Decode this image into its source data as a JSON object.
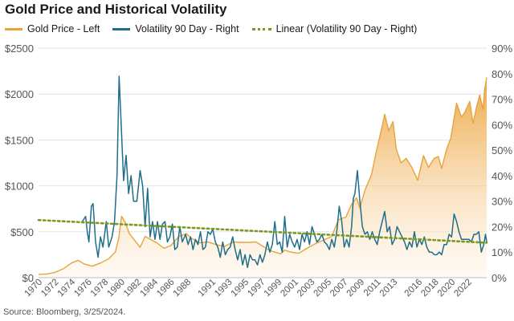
{
  "header": {
    "title": "Gold Price and Historical Volatility"
  },
  "legend": {
    "gold_label": "Gold Price - Left",
    "vol_label": "Volatility 90 Day - Right",
    "linear_label": "Linear (Volatility 90 Day - Right)"
  },
  "footer": {
    "source": "Source: Bloomberg, 3/25/2024."
  },
  "colors": {
    "gold": "#e8a33b",
    "gold_fill_top": "#eea746",
    "volatility": "#1f6e8c",
    "trend": "#7a9a1f",
    "grid": "#e3e3e3",
    "axis_text": "#555555"
  },
  "chart_data": {
    "type": "line",
    "title": "Gold Price and Historical Volatility",
    "x_range": [
      1970,
      2024.25
    ],
    "left_axis": {
      "min": 0,
      "max": 2500,
      "ticks": [
        0,
        500,
        1000,
        1500,
        2000,
        2500
      ],
      "tick_labels": [
        "$0",
        "$500",
        "$1000",
        "$1500",
        "$2000",
        "$2500"
      ]
    },
    "right_axis": {
      "min": 0,
      "max": 90,
      "ticks": [
        0,
        10,
        20,
        30,
        40,
        50,
        60,
        70,
        80,
        90
      ],
      "tick_labels": [
        "0%",
        "10%",
        "20%",
        "30%",
        "40%",
        "50%",
        "60%",
        "70%",
        "80%",
        "90%"
      ]
    },
    "x_ticks": [
      1970,
      1972,
      1974,
      1976,
      1978,
      1980,
      1982,
      1984,
      1986,
      1988,
      1991,
      1993,
      1995,
      1997,
      1999,
      2001,
      2003,
      2005,
      2007,
      2009,
      2011,
      2013,
      2016,
      2018,
      2020,
      2022
    ],
    "x_tick_labels": [
      "1970",
      "1972",
      "1974",
      "1976",
      "1978",
      "1980",
      "1982",
      "1984",
      "1986",
      "1988",
      "1991",
      "1993",
      "1995",
      "1997",
      "1999",
      "2001",
      "2003",
      "2005",
      "2007",
      "2009",
      "2011",
      "2013",
      "2016",
      "2018",
      "2020",
      "2022"
    ],
    "grid": true,
    "series": [
      {
        "name": "Gold Price - Left",
        "axis": "left",
        "style": "area",
        "points": [
          [
            1970,
            36
          ],
          [
            1971,
            40
          ],
          [
            1972,
            58
          ],
          [
            1973,
            97
          ],
          [
            1974,
            160
          ],
          [
            1974.8,
            190
          ],
          [
            1975.5,
            150
          ],
          [
            1976.5,
            125
          ],
          [
            1977.5,
            160
          ],
          [
            1978.5,
            205
          ],
          [
            1979.3,
            280
          ],
          [
            1979.7,
            430
          ],
          [
            1980.05,
            670
          ],
          [
            1980.5,
            600
          ],
          [
            1981,
            480
          ],
          [
            1981.6,
            410
          ],
          [
            1982.3,
            330
          ],
          [
            1982.9,
            450
          ],
          [
            1983.5,
            420
          ],
          [
            1984.3,
            380
          ],
          [
            1985.2,
            320
          ],
          [
            1986,
            350
          ],
          [
            1987,
            450
          ],
          [
            1987.9,
            480
          ],
          [
            1988.5,
            430
          ],
          [
            1989.5,
            380
          ],
          [
            1990.5,
            390
          ],
          [
            1991.5,
            360
          ],
          [
            1992.5,
            340
          ],
          [
            1993.6,
            390
          ],
          [
            1994.5,
            385
          ],
          [
            1995.5,
            385
          ],
          [
            1996.3,
            390
          ],
          [
            1997.2,
            340
          ],
          [
            1998,
            295
          ],
          [
            1999.3,
            260
          ],
          [
            1999.8,
            300
          ],
          [
            2000.5,
            280
          ],
          [
            2001.5,
            265
          ],
          [
            2002.5,
            320
          ],
          [
            2003.5,
            370
          ],
          [
            2004.5,
            410
          ],
          [
            2005.5,
            450
          ],
          [
            2006.3,
            630
          ],
          [
            2007.2,
            660
          ],
          [
            2007.9,
            800
          ],
          [
            2008.5,
            870
          ],
          [
            2008.9,
            760
          ],
          [
            2009.5,
            950
          ],
          [
            2010.3,
            1120
          ],
          [
            2010.9,
            1380
          ],
          [
            2011.6,
            1650
          ],
          [
            2011.9,
            1780
          ],
          [
            2012.4,
            1600
          ],
          [
            2012.9,
            1700
          ],
          [
            2013.3,
            1400
          ],
          [
            2013.9,
            1250
          ],
          [
            2014.5,
            1300
          ],
          [
            2015.2,
            1200
          ],
          [
            2015.9,
            1060
          ],
          [
            2016.6,
            1330
          ],
          [
            2017.2,
            1200
          ],
          [
            2017.9,
            1300
          ],
          [
            2018.4,
            1320
          ],
          [
            2018.8,
            1190
          ],
          [
            2019.4,
            1400
          ],
          [
            2019.9,
            1520
          ],
          [
            2020.6,
            1900
          ],
          [
            2021.2,
            1750
          ],
          [
            2021.6,
            1800
          ],
          [
            2022.2,
            1920
          ],
          [
            2022.6,
            1680
          ],
          [
            2023,
            1850
          ],
          [
            2023.4,
            1990
          ],
          [
            2023.8,
            1830
          ],
          [
            2024.0,
            2050
          ],
          [
            2024.25,
            2180
          ]
        ]
      },
      {
        "name": "Volatility 90 Day - Right",
        "axis": "right",
        "style": "line",
        "points": [
          [
            1975.3,
            22
          ],
          [
            1975.7,
            24
          ],
          [
            1975.9,
            18
          ],
          [
            1976.1,
            14
          ],
          [
            1976.4,
            28
          ],
          [
            1976.6,
            29
          ],
          [
            1976.9,
            14
          ],
          [
            1977.2,
            8
          ],
          [
            1977.5,
            16
          ],
          [
            1977.8,
            12
          ],
          [
            1978.2,
            22
          ],
          [
            1978.5,
            12
          ],
          [
            1978.9,
            16
          ],
          [
            1979.2,
            22
          ],
          [
            1979.5,
            40
          ],
          [
            1979.75,
            79
          ],
          [
            1980.0,
            60
          ],
          [
            1980.3,
            38
          ],
          [
            1980.6,
            48
          ],
          [
            1980.9,
            33
          ],
          [
            1981.2,
            40
          ],
          [
            1981.5,
            30
          ],
          [
            1981.9,
            30
          ],
          [
            1982.3,
            42
          ],
          [
            1982.6,
            36
          ],
          [
            1982.9,
            20
          ],
          [
            1983.2,
            35
          ],
          [
            1983.5,
            16
          ],
          [
            1983.8,
            22
          ],
          [
            1984.1,
            15
          ],
          [
            1984.4,
            22
          ],
          [
            1984.7,
            15
          ],
          [
            1985.0,
            21
          ],
          [
            1985.3,
            22
          ],
          [
            1985.6,
            14
          ],
          [
            1985.9,
            16
          ],
          [
            1986.2,
            21
          ],
          [
            1986.5,
            11
          ],
          [
            1986.8,
            12
          ],
          [
            1987.1,
            20
          ],
          [
            1987.4,
            14
          ],
          [
            1987.8,
            17
          ],
          [
            1988.1,
            13
          ],
          [
            1988.4,
            16
          ],
          [
            1988.7,
            11
          ],
          [
            1989.0,
            15
          ],
          [
            1989.3,
            13
          ],
          [
            1989.6,
            18
          ],
          [
            1989.9,
            11
          ],
          [
            1990.2,
            12
          ],
          [
            1990.5,
            18
          ],
          [
            1990.8,
            17
          ],
          [
            1991.1,
            19
          ],
          [
            1991.4,
            14
          ],
          [
            1991.7,
            12
          ],
          [
            1992.0,
            8
          ],
          [
            1992.3,
            14
          ],
          [
            1992.6,
            9
          ],
          [
            1992.9,
            11
          ],
          [
            1993.2,
            12
          ],
          [
            1993.5,
            16
          ],
          [
            1993.8,
            11
          ],
          [
            1994.1,
            7
          ],
          [
            1994.4,
            11
          ],
          [
            1994.7,
            5
          ],
          [
            1995.0,
            9
          ],
          [
            1995.3,
            4
          ],
          [
            1995.6,
            9
          ],
          [
            1995.9,
            7
          ],
          [
            1996.2,
            7
          ],
          [
            1996.5,
            5
          ],
          [
            1996.8,
            9
          ],
          [
            1997.1,
            6
          ],
          [
            1997.4,
            9
          ],
          [
            1997.7,
            14
          ],
          [
            1998.0,
            10
          ],
          [
            1998.3,
            13
          ],
          [
            1998.6,
            22
          ],
          [
            1998.9,
            13
          ],
          [
            1999.2,
            14
          ],
          [
            1999.5,
            10
          ],
          [
            1999.8,
            24
          ],
          [
            2000.1,
            12
          ],
          [
            2000.4,
            17
          ],
          [
            2000.7,
            14
          ],
          [
            2001.0,
            12
          ],
          [
            2001.3,
            15
          ],
          [
            2001.6,
            11
          ],
          [
            2001.9,
            17
          ],
          [
            2002.2,
            14
          ],
          [
            2002.5,
            18
          ],
          [
            2002.8,
            13
          ],
          [
            2003.1,
            20
          ],
          [
            2003.4,
            17
          ],
          [
            2003.7,
            14
          ],
          [
            2004.0,
            15
          ],
          [
            2004.3,
            17
          ],
          [
            2004.6,
            14
          ],
          [
            2004.9,
            13
          ],
          [
            2005.2,
            11
          ],
          [
            2005.5,
            15
          ],
          [
            2005.8,
            12
          ],
          [
            2006.1,
            18
          ],
          [
            2006.4,
            28
          ],
          [
            2006.7,
            22
          ],
          [
            2007.0,
            12
          ],
          [
            2007.3,
            15
          ],
          [
            2007.6,
            12
          ],
          [
            2007.9,
            20
          ],
          [
            2008.1,
            31
          ],
          [
            2008.3,
            33
          ],
          [
            2008.6,
            42
          ],
          [
            2008.9,
            30
          ],
          [
            2009.2,
            20
          ],
          [
            2009.5,
            17
          ],
          [
            2009.8,
            18
          ],
          [
            2010.1,
            15
          ],
          [
            2010.4,
            18
          ],
          [
            2010.7,
            15
          ],
          [
            2011.0,
            13
          ],
          [
            2011.3,
            18
          ],
          [
            2011.6,
            22
          ],
          [
            2011.9,
            26
          ],
          [
            2012.2,
            18
          ],
          [
            2012.5,
            20
          ],
          [
            2012.8,
            13
          ],
          [
            2013.1,
            15
          ],
          [
            2013.4,
            20
          ],
          [
            2013.7,
            18
          ],
          [
            2014.0,
            16
          ],
          [
            2014.3,
            14
          ],
          [
            2014.6,
            11
          ],
          [
            2014.9,
            14
          ],
          [
            2015.2,
            12
          ],
          [
            2015.5,
            18
          ],
          [
            2015.8,
            12
          ],
          [
            2016.1,
            15
          ],
          [
            2016.4,
            13
          ],
          [
            2016.7,
            16
          ],
          [
            2017.0,
            12
          ],
          [
            2017.3,
            10
          ],
          [
            2017.6,
            10
          ],
          [
            2017.9,
            9
          ],
          [
            2018.2,
            9
          ],
          [
            2018.5,
            10
          ],
          [
            2018.8,
            9
          ],
          [
            2019.1,
            13
          ],
          [
            2019.4,
            13
          ],
          [
            2019.7,
            17
          ],
          [
            2020.0,
            16
          ],
          [
            2020.3,
            25
          ],
          [
            2020.6,
            22
          ],
          [
            2020.9,
            18
          ],
          [
            2021.2,
            15
          ],
          [
            2021.5,
            15
          ],
          [
            2021.8,
            15
          ],
          [
            2022.1,
            15
          ],
          [
            2022.4,
            14
          ],
          [
            2022.7,
            17
          ],
          [
            2023.0,
            17
          ],
          [
            2023.3,
            18
          ],
          [
            2023.6,
            10
          ],
          [
            2023.9,
            13
          ],
          [
            2024.1,
            17
          ],
          [
            2024.25,
            14
          ]
        ]
      },
      {
        "name": "Linear (Volatility 90 Day - Right)",
        "axis": "right",
        "style": "dotted",
        "points": [
          [
            1970,
            22.6
          ],
          [
            2024.25,
            13.7
          ]
        ]
      }
    ]
  }
}
